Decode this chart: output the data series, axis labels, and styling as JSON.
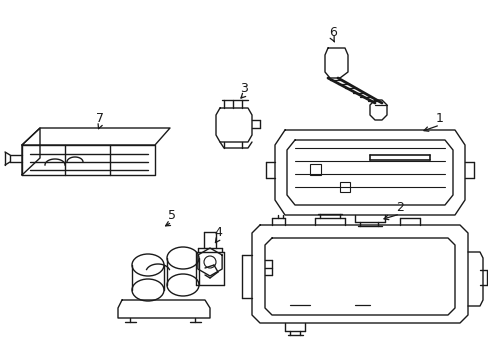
{
  "background_color": "#ffffff",
  "line_color": "#1a1a1a",
  "lw": 1.0,
  "figsize": [
    4.89,
    3.6
  ],
  "dpi": 100
}
